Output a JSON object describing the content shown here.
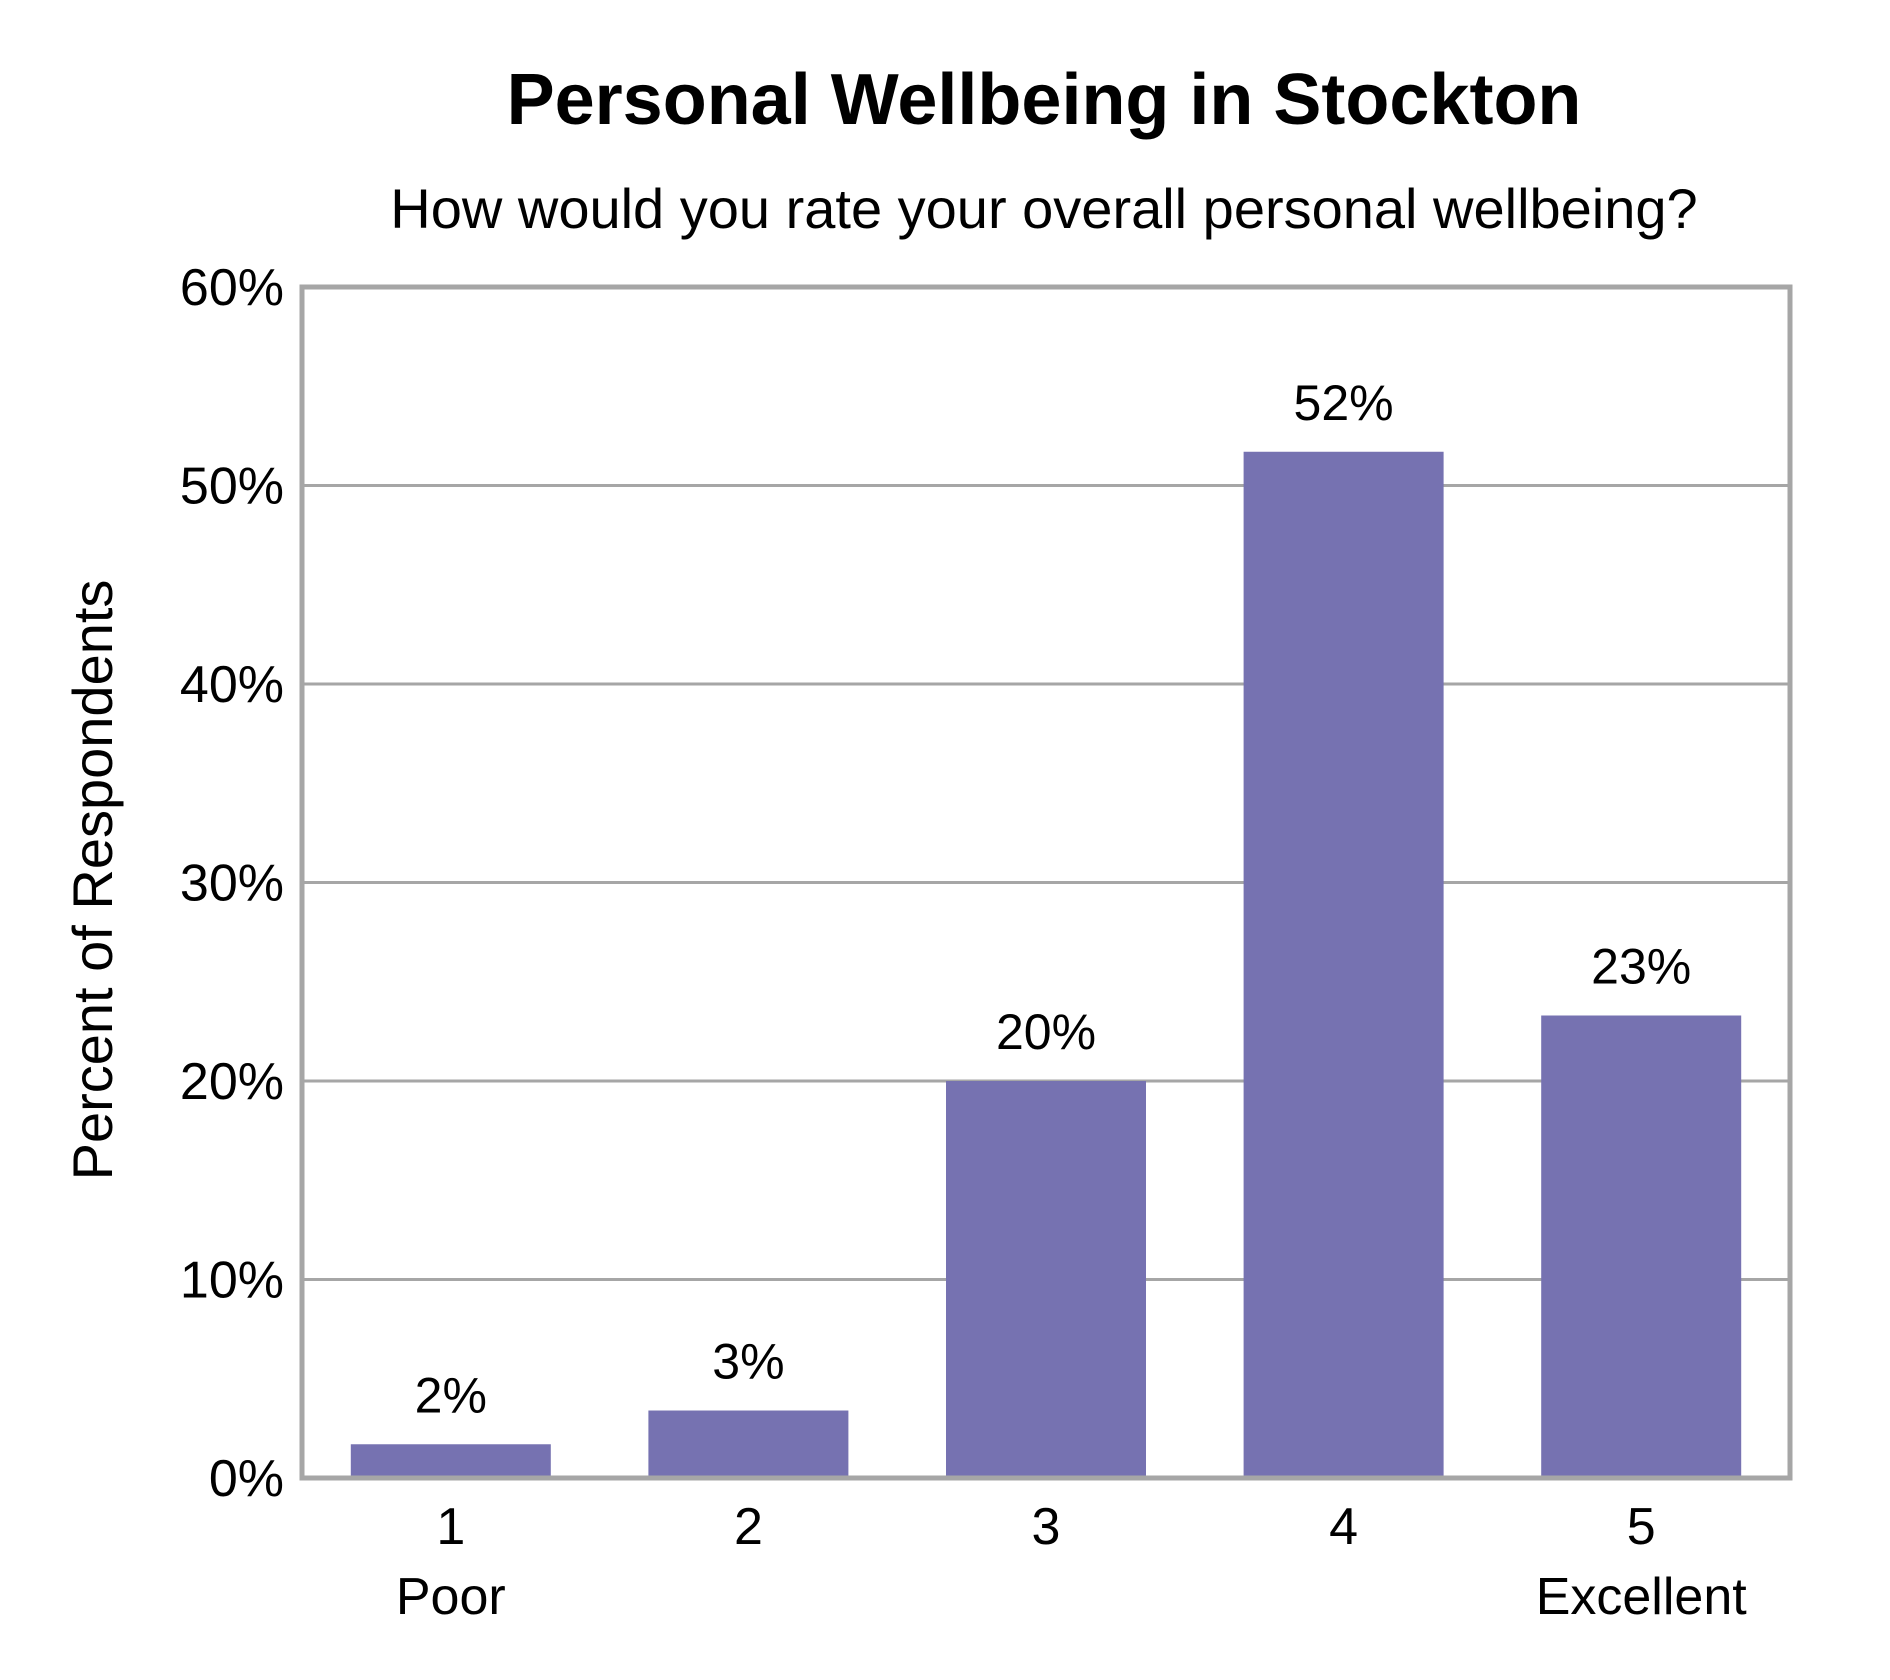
{
  "chart_data": {
    "type": "bar",
    "title": "Personal Wellbeing in Stockton",
    "subtitle": "How would you rate your overall personal wellbeing?",
    "ylabel": "Percent of Respondents",
    "xlabel": "",
    "categories": [
      "1",
      "2",
      "3",
      "4",
      "5"
    ],
    "category_sublabels": [
      "Poor",
      "",
      "",
      "",
      "Excellent"
    ],
    "values": [
      1.7,
      3.4,
      20.0,
      51.7,
      23.3
    ],
    "data_labels": [
      "2%",
      "3%",
      "20%",
      "52%",
      "23%"
    ],
    "ylim": [
      0,
      60
    ],
    "yticks": [
      0,
      10,
      20,
      30,
      40,
      50,
      60
    ],
    "ytick_labels": [
      "0%",
      "10%",
      "20%",
      "30%",
      "40%",
      "50%",
      "60%"
    ],
    "grid": true,
    "legend": "none",
    "colors": {
      "bar": "#7672b1",
      "grid": "#a6a6a6",
      "frame": "#a6a6a6"
    }
  }
}
